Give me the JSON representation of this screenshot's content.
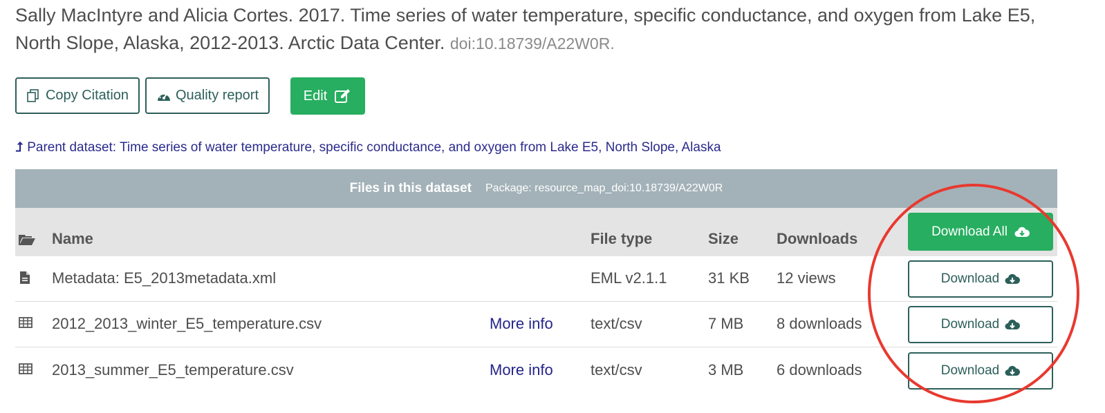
{
  "citation": {
    "text": "Sally MacIntyre and Alicia Cortes. 2017. Time series of water temperature, specific conductance, and oxygen from Lake E5, North Slope, Alaska, 2012-2013. Arctic Data Center.",
    "doi": "doi:10.18739/A22W0R."
  },
  "actions": {
    "copy_citation": "Copy Citation",
    "quality_report": "Quality report",
    "edit": "Edit"
  },
  "parent": {
    "arrow": "⮥",
    "label": "Parent dataset: Time series of water temperature, specific conductance, and oxygen from Lake E5, North Slope, Alaska"
  },
  "files_panel": {
    "title": "Files in this dataset",
    "package": "Package: resource_map_doi:10.18739/A22W0R",
    "download_all": "Download All",
    "columns": {
      "name": "Name",
      "file_type": "File type",
      "size": "Size",
      "downloads": "Downloads"
    },
    "rows": [
      {
        "icon": "document-icon",
        "name": "Metadata: E5_2013metadata.xml",
        "more_info": "",
        "file_type": "EML v2.1.1",
        "size": "31 KB",
        "downloads": "12 views",
        "button": "Download"
      },
      {
        "icon": "table-icon",
        "name": "2012_2013_winter_E5_temperature.csv",
        "more_info": "More info",
        "file_type": "text/csv",
        "size": "7 MB",
        "downloads": "8 downloads",
        "button": "Download"
      },
      {
        "icon": "table-icon",
        "name": "2013_summer_E5_temperature.csv",
        "more_info": "More info",
        "file_type": "text/csv",
        "size": "3 MB",
        "downloads": "6 downloads",
        "button": "Download"
      }
    ]
  },
  "colors": {
    "accent_green": "#27ae60",
    "outline_teal": "#2c5f5a",
    "header_gray": "#a3b2b8",
    "annotation_red": "#e8392f"
  }
}
